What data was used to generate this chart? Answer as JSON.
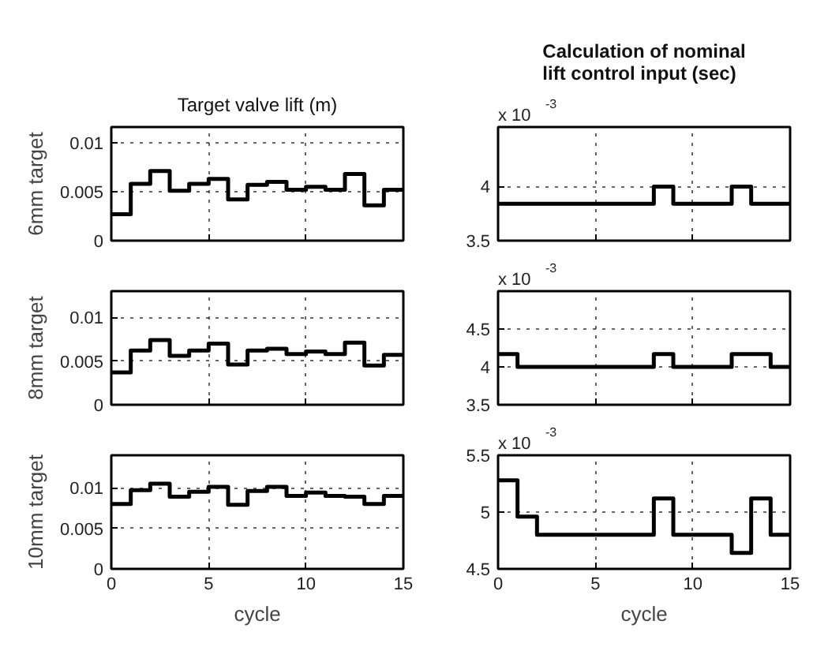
{
  "chart_data": [
    {
      "type": "step",
      "title": "Target valve lift (m)",
      "ylabel": "6mm target",
      "x": [
        0,
        1,
        2,
        3,
        4,
        5,
        6,
        7,
        8,
        9,
        10,
        11,
        12,
        13,
        14,
        15
      ],
      "series": [
        {
          "color": "#000000",
          "values": [
            0.0027,
            0.0058,
            0.0071,
            0.0051,
            0.0058,
            0.0063,
            0.0042,
            0.0057,
            0.006,
            0.0052,
            0.0055,
            0.0052,
            0.0068,
            0.0036,
            0.0052,
            0.0052
          ]
        }
      ],
      "xlim": [
        0,
        15
      ],
      "xticks": [
        0,
        5,
        10,
        15
      ],
      "ylim": [
        0,
        0.0116
      ],
      "yticks": [
        0,
        0.005,
        0.01
      ],
      "grid": true,
      "tick_labels": "y"
    },
    {
      "type": "step",
      "title": "Calculation of nominal\nlift control input (sec)",
      "annotations": [
        "x 10$^{-3}$"
      ],
      "x": [
        0,
        1,
        2,
        3,
        4,
        5,
        6,
        7,
        8,
        9,
        10,
        11,
        12,
        13,
        14,
        15
      ],
      "series": [
        {
          "color": "#000000",
          "values": [
            3.84,
            3.84,
            3.84,
            3.84,
            3.84,
            3.84,
            3.84,
            3.84,
            4.0,
            3.84,
            3.84,
            3.84,
            4.0,
            3.84,
            3.84,
            3.84
          ]
        }
      ],
      "xlim": [
        0,
        15
      ],
      "xticks": [
        0,
        5,
        10,
        15
      ],
      "ylim": [
        3.5,
        4.55
      ],
      "yticks": [
        3.5,
        4
      ],
      "grid": true,
      "tick_labels": "y"
    },
    {
      "type": "step",
      "ylabel": "8mm target",
      "x": [
        0,
        1,
        2,
        3,
        4,
        5,
        6,
        7,
        8,
        9,
        10,
        11,
        12,
        13,
        14,
        15
      ],
      "series": [
        {
          "color": "#000000",
          "values": [
            0.0037,
            0.0062,
            0.0074,
            0.0056,
            0.0062,
            0.007,
            0.0046,
            0.0062,
            0.0064,
            0.0058,
            0.0061,
            0.0058,
            0.0071,
            0.0045,
            0.0057,
            0.0057
          ]
        }
      ],
      "xlim": [
        0,
        15
      ],
      "xticks": [
        0,
        5,
        10,
        15
      ],
      "ylim": [
        0,
        0.013
      ],
      "yticks": [
        0,
        0.005,
        0.01
      ],
      "grid": true,
      "tick_labels": "y"
    },
    {
      "type": "step",
      "annotations": [
        "x 10$^{-3}$"
      ],
      "x": [
        0,
        1,
        2,
        3,
        4,
        5,
        6,
        7,
        8,
        9,
        10,
        11,
        12,
        13,
        14,
        15
      ],
      "series": [
        {
          "color": "#000000",
          "values": [
            4.17,
            4.0,
            4.0,
            4.0,
            4.0,
            4.0,
            4.0,
            4.0,
            4.17,
            4.0,
            4.0,
            4.0,
            4.17,
            4.17,
            4.0,
            4.0
          ]
        }
      ],
      "xlim": [
        0,
        15
      ],
      "xticks": [
        0,
        5,
        10,
        15
      ],
      "ylim": [
        3.5,
        5
      ],
      "yticks": [
        3.5,
        4,
        4.5
      ],
      "grid": true,
      "tick_labels": "y"
    },
    {
      "type": "step",
      "ylabel": "10mm target",
      "xlabel": "cycle",
      "x": [
        0,
        1,
        2,
        3,
        4,
        5,
        6,
        7,
        8,
        9,
        10,
        11,
        12,
        13,
        14,
        15
      ],
      "series": [
        {
          "color": "#000000",
          "values": [
            0.008,
            0.0097,
            0.0105,
            0.0089,
            0.0095,
            0.0101,
            0.0079,
            0.0096,
            0.0101,
            0.009,
            0.0094,
            0.009,
            0.0089,
            0.008,
            0.009,
            0.009
          ]
        }
      ],
      "xlim": [
        0,
        15
      ],
      "xticks": [
        0,
        5,
        10,
        15
      ],
      "ylim": [
        0,
        0.014
      ],
      "yticks": [
        0,
        0.005,
        0.01
      ],
      "grid": true
    },
    {
      "type": "step",
      "xlabel": "cycle",
      "annotations": [
        "x 10$^{-3}$"
      ],
      "x": [
        0,
        1,
        2,
        3,
        4,
        5,
        6,
        7,
        8,
        9,
        10,
        11,
        12,
        13,
        14,
        15
      ],
      "series": [
        {
          "color": "#000000",
          "values": [
            5.28,
            4.96,
            4.8,
            4.8,
            4.8,
            4.8,
            4.8,
            4.8,
            5.12,
            4.8,
            4.8,
            4.8,
            4.64,
            5.12,
            4.8,
            4.8
          ]
        }
      ],
      "xlim": [
        0,
        15
      ],
      "xticks": [
        0,
        5,
        10,
        15
      ],
      "ylim": [
        4.5,
        5.5
      ],
      "yticks": [
        4.5,
        5,
        5.5
      ],
      "grid": true
    }
  ]
}
